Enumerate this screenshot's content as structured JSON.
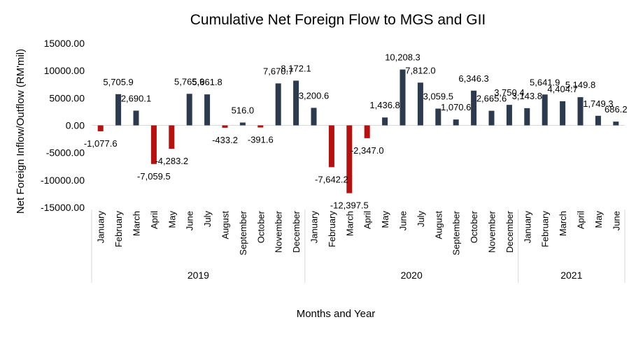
{
  "chart_data": {
    "type": "bar",
    "title": "Cumulative Net Foreign Flow to MGS and GII",
    "xlabel": "Months and Year",
    "ylabel": "Net Foreign Inflow/Outflow (RM'mil)",
    "ylim": [
      -15000,
      15000
    ],
    "y_ticks": [
      "-15000.00",
      "-10000.00",
      "-5000.00",
      "0.00",
      "5000.00",
      "10000.00",
      "15000.00"
    ],
    "y_tick_values": [
      -15000,
      -10000,
      -5000,
      0,
      5000,
      10000,
      15000
    ],
    "grid": false,
    "legend": "none",
    "colors": {
      "positive": "#2b3a4d",
      "negative": "#b80f0f",
      "axis": "#d9d9d9"
    },
    "groups": [
      {
        "label": "2019",
        "months": [
          "January",
          "February",
          "March",
          "April",
          "May",
          "June",
          "July",
          "August",
          "September",
          "October",
          "November",
          "December"
        ]
      },
      {
        "label": "2020",
        "months": [
          "January",
          "February",
          "March",
          "April",
          "May",
          "June",
          "July",
          "August",
          "September",
          "October",
          "November",
          "December"
        ]
      },
      {
        "label": "2021",
        "months": [
          "January",
          "February",
          "March",
          "April",
          "May",
          "June"
        ]
      }
    ],
    "values": [
      -1077.6,
      5705.9,
      2690.1,
      -7059.5,
      -4283.2,
      5765.9,
      5661.8,
      -433.2,
      516.0,
      -391.6,
      7670.7,
      8172.1,
      3200.6,
      -7642.2,
      -12397.5,
      -2347.0,
      1436.8,
      10208.3,
      7812.0,
      3059.5,
      1070.6,
      6346.3,
      2665.6,
      3750.4,
      3143.8,
      5641.9,
      4404.7,
      5149.8,
      1749.3,
      686.2
    ],
    "data_labels": [
      "-1,077.6",
      "5,705.9",
      "2,690.1",
      "-7,059.5",
      "-4,283.2",
      "5,765.9",
      "5,661.8",
      "-433.2",
      "516.0",
      "-391.6",
      "7,670.7",
      "8,172.1",
      "3,200.6",
      "-7,642.2",
      "-12,397.5",
      "-2,347.0",
      "1,436.8",
      "10,208.3",
      "7,812.0",
      "3,059.5",
      "1,070.6",
      "6,346.3",
      "2,665.6",
      "3,750.4",
      "3,143.8",
      "5,641.9",
      "4,404.7",
      "5,149.8",
      "1,749.3",
      "686.2"
    ]
  }
}
